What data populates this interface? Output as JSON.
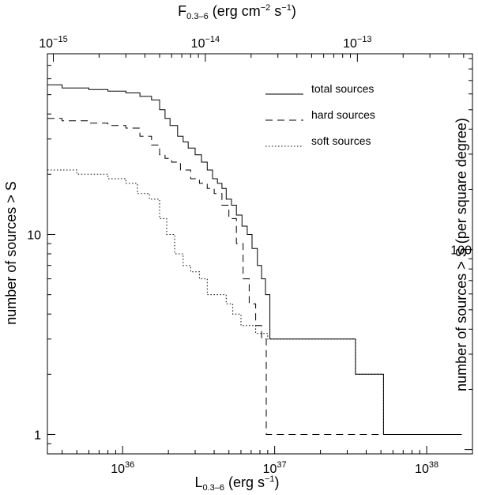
{
  "chart_data": {
    "type": "line",
    "step": true,
    "xscale": "log",
    "yscale": "log",
    "xlabel": {
      "main": "L",
      "sub": "0.3–6",
      "unit": " (erg s",
      "unit_sup": "−1",
      "close": ")"
    },
    "ylabel": "number of sources > S",
    "top_label": {
      "main": "F",
      "sub": "0.3–6",
      "unit1": " (erg cm",
      "unit1_sup": "−2",
      "unit2": " s",
      "unit2_sup": "−1",
      "close": ")"
    },
    "right_label": "number of sources > S (per square degree)",
    "xlim": [
      3.2e+35,
      2e+38
    ],
    "ylim": [
      0.8,
      80
    ],
    "x_ticks": [
      {
        "value": 1e+36,
        "base": "10",
        "exp": "36"
      },
      {
        "value": 1e+37,
        "base": "10",
        "exp": "37"
      },
      {
        "value": 1e+38,
        "base": "10",
        "exp": "38"
      }
    ],
    "y_ticks": [
      {
        "value": 1,
        "label": "1"
      },
      {
        "value": 10,
        "label": "10"
      }
    ],
    "top_ticks": [
      {
        "value": 1e-15,
        "base": "10",
        "exp": "−15",
        "at_x": 3.5e+35
      },
      {
        "value": 1e-14,
        "base": "10",
        "exp": "−14",
        "at_x": 3.5e+36
      },
      {
        "value": 1e-13,
        "base": "10",
        "exp": "−13",
        "at_x": 3.5e+37
      }
    ],
    "right_ticks": [
      {
        "value": 100,
        "label": "100",
        "at_y": 8.4
      }
    ],
    "legend": {
      "placement": "top-right"
    },
    "series": [
      {
        "name": "total sources",
        "dash": "solid",
        "x": [
          3.2e+35,
          4e+35,
          6e+35,
          8e+35,
          1.05e+36,
          1.3e+36,
          1.55e+36,
          1.75e+36,
          1.9e+36,
          2.05e+36,
          2.3e+36,
          2.5e+36,
          2.7e+36,
          3e+36,
          3.3e+36,
          3.6e+36,
          3.9e+36,
          4.2e+36,
          4.5e+36,
          4.8e+36,
          5.2e+36,
          5.6e+36,
          6.1e+36,
          6.6e+36,
          7.1e+36,
          7.7e+36,
          8.2e+36,
          8.7e+36,
          9.3e+36,
          3.4e+37,
          5.2e+37,
          1.7e+38
        ],
        "y": [
          56,
          54,
          53,
          52,
          51,
          49,
          47,
          42,
          38,
          35,
          31,
          29,
          27,
          25,
          23,
          21,
          19,
          18,
          17,
          15,
          14,
          12.5,
          11,
          10,
          8.5,
          7,
          6,
          5,
          3,
          2,
          1,
          1
        ]
      },
      {
        "name": "hard sources",
        "dash": "dashed",
        "x": [
          3.2e+35,
          4e+35,
          6e+35,
          8e+35,
          1.05e+36,
          1.3e+36,
          1.55e+36,
          1.75e+36,
          1.9e+36,
          2.1e+36,
          2.4e+36,
          2.8e+36,
          3.2e+36,
          3.6e+36,
          4e+36,
          4.5e+36,
          5e+36,
          5.6e+36,
          6.2e+36,
          6.8e+36,
          7.5e+36,
          8.2e+36,
          8.8e+36,
          1.7e+38
        ],
        "y": [
          38,
          37,
          36,
          35,
          34,
          31,
          28,
          25,
          24,
          23,
          21,
          19,
          18,
          17,
          16,
          14,
          12,
          9,
          6,
          4.5,
          3.5,
          3,
          1,
          1
        ]
      },
      {
        "name": "soft sources",
        "dash": "dotted",
        "x": [
          3.2e+35,
          5e+35,
          8e+35,
          1.05e+36,
          1.25e+36,
          1.5e+36,
          1.75e+36,
          1.95e+36,
          2.2e+36,
          2.5e+36,
          2.8e+36,
          3.2e+36,
          3.6e+36,
          4.2e+36,
          4.8e+36,
          5.3e+36,
          6e+36,
          7.5e+36,
          9e+36,
          3.4e+37,
          5.2e+37,
          1.7e+38
        ],
        "y": [
          21,
          20,
          19,
          18,
          16,
          15,
          12,
          10,
          8,
          7,
          6.5,
          6,
          5,
          5,
          4.5,
          4,
          3.5,
          3.2,
          3,
          2,
          1,
          1
        ]
      }
    ]
  }
}
